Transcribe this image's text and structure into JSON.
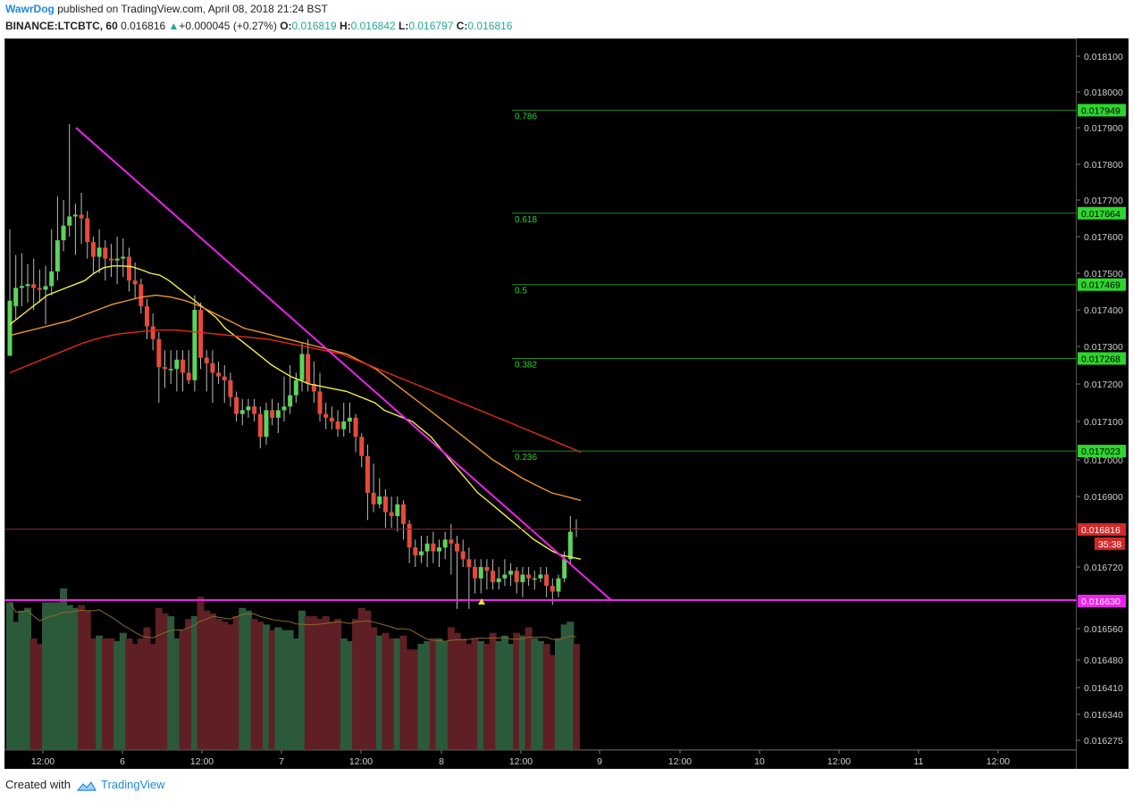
{
  "header": {
    "author": "WawrDog",
    "published_text": " published on TradingView.com, April 08, 2018 21:24 BST",
    "symbol": "BINANCE:LTCBTC, 60",
    "last": "0.016816",
    "up_arrow": "▲",
    "change": "+0.000045 (+0.27%)",
    "o_label": "O:",
    "o_value": "0.016819",
    "h_label": "H:",
    "h_value": "0.016842",
    "l_label": "L:",
    "l_value": "0.016797",
    "c_label": "C:",
    "c_value": "0.016816"
  },
  "footer": {
    "created_with": "Created with",
    "brand": "TradingView",
    "logo_icon": "tradingview-cloud-icon"
  },
  "colors": {
    "background": "#000000",
    "bull": "#5ad55a",
    "bear": "#e84a3a",
    "ema_fast": "#f1ee46",
    "ema_mid": "#f0962a",
    "ema_slow": "#e42a1a",
    "trendline": "#ee22ee",
    "support_line": "#ee22ee",
    "fib_line": "#1e8a1e",
    "fib_badge": "#2dd62d",
    "last_price_badge": "#d42828",
    "axis_text": "#cfcfcf"
  },
  "chart_data": {
    "type": "candlestick",
    "symbol": "LTCBTC",
    "exchange": "BINANCE",
    "interval": "60",
    "x_ticks": [
      "12:00",
      "6",
      "12:00",
      "7",
      "12:00",
      "8",
      "12:00",
      "9",
      "12:00",
      "10",
      "12:00",
      "11",
      "12:00"
    ],
    "y_ticks": [
      "0.018100",
      "0.018000",
      "0.017900",
      "0.017800",
      "0.017700",
      "0.017600",
      "0.017500",
      "0.017400",
      "0.017300",
      "0.017200",
      "0.017100",
      "0.017000",
      "0.016900",
      "0.016720",
      "0.016560",
      "0.016480",
      "0.016410",
      "0.016340",
      "0.016275"
    ],
    "last_price": "0.016816",
    "countdown": "35:38",
    "support_level": "0.016630",
    "fibonacci": [
      {
        "ratio": "0.236",
        "price": "0.017023"
      },
      {
        "ratio": "0.382",
        "price": "0.017268"
      },
      {
        "ratio": "0.5",
        "price": "0.017469"
      },
      {
        "ratio": "0.618",
        "price": "0.017664"
      },
      {
        "ratio": "0.786",
        "price": "0.017949"
      }
    ],
    "price_anchors": [
      [
        0.0181,
        63
      ],
      [
        0.018,
        103
      ],
      [
        0.0179,
        143
      ],
      [
        0.0178,
        184
      ],
      [
        0.0177,
        224
      ],
      [
        0.0176,
        265
      ],
      [
        0.0175,
        306
      ],
      [
        0.0174,
        347
      ],
      [
        0.0173,
        388
      ],
      [
        0.0172,
        430
      ],
      [
        0.0171,
        472
      ],
      [
        0.017,
        515
      ],
      [
        0.0169,
        556
      ],
      [
        0.01672,
        635
      ],
      [
        0.01663,
        673
      ],
      [
        0.01656,
        704
      ],
      [
        0.01648,
        739
      ],
      [
        0.01641,
        770
      ],
      [
        0.01634,
        800
      ],
      [
        0.016275,
        829
      ]
    ],
    "candles": [
      [
        0.017275,
        0.017425,
        0.01762,
        0.01728
      ],
      [
        0.01741,
        0.01746,
        0.01755,
        0.017375
      ],
      [
        0.01746,
        0.017465,
        0.017555,
        0.01741
      ],
      [
        0.017465,
        0.01747,
        0.017525,
        0.01742
      ],
      [
        0.01747,
        0.01746,
        0.01754,
        0.0174
      ],
      [
        0.01746,
        0.017455,
        0.01751,
        0.01742
      ],
      [
        0.017455,
        0.017465,
        0.01752,
        0.01736
      ],
      [
        0.017465,
        0.017505,
        0.01762,
        0.01744
      ],
      [
        0.017505,
        0.01759,
        0.01771,
        0.01748
      ],
      [
        0.01759,
        0.01763,
        0.0177,
        0.01756
      ],
      [
        0.01763,
        0.017655,
        0.01791,
        0.0176
      ],
      [
        0.017655,
        0.01766,
        0.01769,
        0.01755
      ],
      [
        0.01766,
        0.01765,
        0.01772,
        0.01758
      ],
      [
        0.01765,
        0.017585,
        0.01767,
        0.01754
      ],
      [
        0.017585,
        0.017545,
        0.0176,
        0.0175
      ],
      [
        0.017545,
        0.01757,
        0.01762,
        0.0175
      ],
      [
        0.01757,
        0.01754,
        0.01759,
        0.01748
      ],
      [
        0.01754,
        0.017535,
        0.01758,
        0.01749
      ],
      [
        0.017535,
        0.01754,
        0.0176,
        0.01747
      ],
      [
        0.01754,
        0.017545,
        0.017595,
        0.01749
      ],
      [
        0.017545,
        0.01748,
        0.01757,
        0.01745
      ],
      [
        0.01748,
        0.01747,
        0.01753,
        0.01743
      ],
      [
        0.01747,
        0.01741,
        0.017485,
        0.01739
      ],
      [
        0.01741,
        0.017355,
        0.01743,
        0.01732
      ],
      [
        0.017355,
        0.01732,
        0.01739,
        0.01729
      ],
      [
        0.01732,
        0.017245,
        0.01734,
        0.01715
      ],
      [
        0.017245,
        0.01724,
        0.01729,
        0.01719
      ],
      [
        0.01724,
        0.01724,
        0.01729,
        0.0172
      ],
      [
        0.01724,
        0.017265,
        0.01729,
        0.01718
      ],
      [
        0.017265,
        0.01723,
        0.01729,
        0.01718
      ],
      [
        0.01723,
        0.01721,
        0.01729,
        0.0172
      ],
      [
        0.01721,
        0.0174,
        0.01744,
        0.01718
      ],
      [
        0.0174,
        0.01727,
        0.01742,
        0.01724
      ],
      [
        0.01727,
        0.017255,
        0.01729,
        0.01718
      ],
      [
        0.017255,
        0.01723,
        0.01729,
        0.01715
      ],
      [
        0.01723,
        0.01722,
        0.01726,
        0.0172
      ],
      [
        0.01722,
        0.01721,
        0.01725,
        0.01715
      ],
      [
        0.01721,
        0.017165,
        0.01723,
        0.01714
      ],
      [
        0.017165,
        0.01712,
        0.01718,
        0.0171
      ],
      [
        0.01712,
        0.01713,
        0.01716,
        0.01709
      ],
      [
        0.01713,
        0.01714,
        0.01716,
        0.01711
      ],
      [
        0.01714,
        0.01712,
        0.01716,
        0.0171
      ],
      [
        0.01712,
        0.01706,
        0.01714,
        0.01703
      ],
      [
        0.01706,
        0.01713,
        0.01715,
        0.01704
      ],
      [
        0.01713,
        0.01711,
        0.01716,
        0.01709
      ],
      [
        0.01711,
        0.01713,
        0.01715,
        0.01707
      ],
      [
        0.01713,
        0.01714,
        0.01722,
        0.0171
      ],
      [
        0.01714,
        0.01717,
        0.01725,
        0.01712
      ],
      [
        0.01717,
        0.01721,
        0.01723,
        0.01715
      ],
      [
        0.01721,
        0.01728,
        0.01731,
        0.01718
      ],
      [
        0.01728,
        0.0172,
        0.01732,
        0.01718
      ],
      [
        0.0172,
        0.01718,
        0.01726,
        0.01715
      ],
      [
        0.01718,
        0.01712,
        0.01723,
        0.0171
      ],
      [
        0.01712,
        0.01711,
        0.01715,
        0.01708
      ],
      [
        0.01711,
        0.0171,
        0.01714,
        0.01708
      ],
      [
        0.0171,
        0.01708,
        0.01713,
        0.01706
      ],
      [
        0.01708,
        0.0171,
        0.01715,
        0.01706
      ],
      [
        0.0171,
        0.01711,
        0.01715,
        0.01707
      ],
      [
        0.01711,
        0.01706,
        0.01712,
        0.01702
      ],
      [
        0.01706,
        0.01701,
        0.01707,
        0.01698
      ],
      [
        0.01701,
        0.01691,
        0.01704,
        0.01684
      ],
      [
        0.01691,
        0.01688,
        0.01699,
        0.01686
      ],
      [
        0.01688,
        0.0169,
        0.01695,
        0.01687
      ],
      [
        0.0169,
        0.01686,
        0.01692,
        0.01682
      ],
      [
        0.01686,
        0.01685,
        0.0169,
        0.01682
      ],
      [
        0.01685,
        0.01688,
        0.0169,
        0.01681
      ],
      [
        0.01688,
        0.01683,
        0.01689,
        0.01679
      ],
      [
        0.01683,
        0.01677,
        0.01684,
        0.01673
      ],
      [
        0.01677,
        0.01675,
        0.01679,
        0.01672
      ],
      [
        0.01675,
        0.01676,
        0.0168,
        0.01673
      ],
      [
        0.01676,
        0.01678,
        0.0168,
        0.01672
      ],
      [
        0.01678,
        0.01676,
        0.01681,
        0.01673
      ],
      [
        0.01676,
        0.01677,
        0.01679,
        0.01672
      ],
      [
        0.01677,
        0.01679,
        0.01681,
        0.01674
      ],
      [
        0.01679,
        0.01678,
        0.01683,
        0.0167
      ],
      [
        0.01678,
        0.01676,
        0.0168,
        0.01661
      ],
      [
        0.01676,
        0.01674,
        0.01679,
        0.01672
      ],
      [
        0.01674,
        0.01672,
        0.01677,
        0.01661
      ],
      [
        0.01672,
        0.01669,
        0.01674,
        0.01665
      ],
      [
        0.01669,
        0.01672,
        0.01674,
        0.01665
      ],
      [
        0.01672,
        0.01671,
        0.01674,
        0.01666
      ],
      [
        0.01671,
        0.01668,
        0.01674,
        0.01666
      ],
      [
        0.01668,
        0.01669,
        0.01672,
        0.01666
      ],
      [
        0.01669,
        0.0167,
        0.01674,
        0.01667
      ],
      [
        0.0167,
        0.01671,
        0.01673,
        0.01667
      ],
      [
        0.01671,
        0.01668,
        0.01672,
        0.01665
      ],
      [
        0.01668,
        0.0167,
        0.01672,
        0.01664
      ],
      [
        0.0167,
        0.01669,
        0.01672,
        0.01667
      ],
      [
        0.01669,
        0.01669,
        0.01671,
        0.01666
      ],
      [
        0.01669,
        0.0167,
        0.01672,
        0.01668
      ],
      [
        0.0167,
        0.01667,
        0.01672,
        0.01664
      ],
      [
        0.01667,
        0.016655,
        0.01669,
        0.01662
      ],
      [
        0.016655,
        0.01669,
        0.0167,
        0.01664
      ],
      [
        0.01669,
        0.01674,
        0.01676,
        0.01668
      ],
      [
        0.01674,
        0.01681,
        0.01685,
        0.01673
      ],
      [
        0.016819,
        0.016816,
        0.016842,
        0.016797
      ]
    ],
    "volumes": [
      53,
      46,
      50,
      51,
      40,
      38,
      53,
      53,
      53,
      58,
      52,
      51,
      52,
      50,
      40,
      41,
      40,
      40,
      39,
      42,
      40,
      38,
      40,
      44,
      38,
      51,
      49,
      48,
      40,
      43,
      47,
      48,
      55,
      50,
      49,
      47,
      46,
      45,
      48,
      51,
      50,
      47,
      46,
      45,
      43,
      44,
      43,
      43,
      40,
      50,
      48,
      48,
      47,
      48,
      46,
      47,
      40,
      39,
      47,
      51,
      50,
      44,
      41,
      42,
      40,
      40,
      41,
      36,
      36,
      38,
      39,
      40,
      40,
      39,
      44,
      42,
      40,
      38,
      40,
      39,
      38,
      42,
      39,
      41,
      38,
      42,
      41,
      44,
      40,
      39,
      38,
      34,
      40,
      45,
      46,
      38
    ],
    "series": [
      {
        "name": "",
        "kind": "ema_fast",
        "values": [
          0.01736,
          0.01738,
          0.0174,
          0.01742,
          0.01744,
          0.01745,
          0.01746,
          0.01747,
          0.01748,
          0.0175,
          0.017515,
          0.01752,
          0.01752,
          0.017518,
          0.01751,
          0.0175,
          0.017495,
          0.01748,
          0.01746,
          0.01744,
          0.01742,
          0.0174,
          0.01738,
          0.01735,
          0.01733,
          0.01731,
          0.01729,
          0.01727,
          0.01725,
          0.017235,
          0.01722,
          0.01721,
          0.0172,
          0.017195,
          0.01719,
          0.017185,
          0.01718,
          0.01717,
          0.01716,
          0.01715,
          0.01713,
          0.01712,
          0.01711,
          0.0171,
          0.01708,
          0.01706,
          0.01703,
          0.017,
          0.01697,
          0.01694,
          0.01691,
          0.01689,
          0.01687,
          0.01685,
          0.01683,
          0.01681,
          0.01679,
          0.016775,
          0.01676,
          0.01675,
          0.016745,
          0.01674
        ]
      },
      {
        "name": "",
        "kind": "ema_mid",
        "values": [
          0.01733,
          0.01734,
          0.01735,
          0.01736,
          0.01737,
          0.017385,
          0.0174,
          0.017415,
          0.017425,
          0.017435,
          0.01744,
          0.017435,
          0.017425,
          0.01741,
          0.01739,
          0.01737,
          0.01735,
          0.01734,
          0.01733,
          0.01732,
          0.01731,
          0.0173,
          0.01729,
          0.01728,
          0.01726,
          0.01724,
          0.01721,
          0.01718,
          0.01715,
          0.01712,
          0.01709,
          0.01706,
          0.01703,
          0.017,
          0.016975,
          0.01695,
          0.01693,
          0.01691,
          0.0169,
          0.01689
        ]
      },
      {
        "name": "",
        "kind": "ema_slow",
        "values": [
          0.01723,
          0.01725,
          0.01727,
          0.01729,
          0.01731,
          0.017325,
          0.017335,
          0.01734,
          0.017345,
          0.017345,
          0.01734,
          0.017335,
          0.01733,
          0.017325,
          0.01732,
          0.01731,
          0.0173,
          0.01729,
          0.01728,
          0.01726,
          0.01724,
          0.01722,
          0.0172,
          0.01718,
          0.01716,
          0.01714,
          0.01712,
          0.0171,
          0.01708,
          0.01706,
          0.01704,
          0.01702
        ]
      }
    ]
  }
}
